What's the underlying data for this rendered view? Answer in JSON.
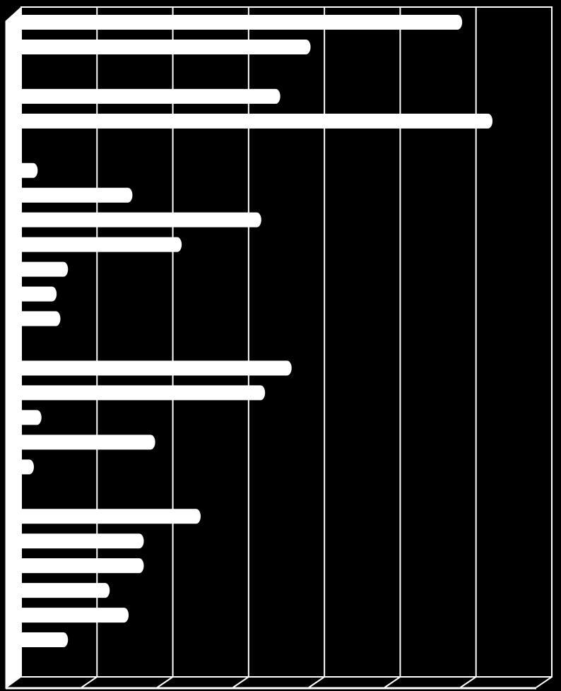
{
  "chart_data": {
    "type": "bar",
    "orientation": "horizontal",
    "style": "3d",
    "title": "",
    "xlabel": "",
    "ylabel": "",
    "xlim": [
      0,
      7
    ],
    "grid": true,
    "legend": "none",
    "categories": [
      "",
      "",
      "",
      "",
      "",
      "",
      "",
      "",
      "",
      "",
      "",
      "",
      "",
      "",
      "",
      "",
      "",
      "",
      "",
      "",
      "",
      "",
      "",
      "",
      "",
      "",
      ""
    ],
    "values": [
      5.85,
      3.85,
      0,
      3.45,
      6.25,
      0,
      0.25,
      1.5,
      3.2,
      2.15,
      0.65,
      0.5,
      0.55,
      0,
      3.6,
      3.25,
      0.3,
      1.8,
      0.2,
      0,
      2.4,
      1.65,
      1.65,
      1.2,
      1.45,
      0.65,
      0
    ],
    "colors": {
      "background": "#000000",
      "bar": "#ffffff",
      "grid": "#ffffff"
    }
  }
}
